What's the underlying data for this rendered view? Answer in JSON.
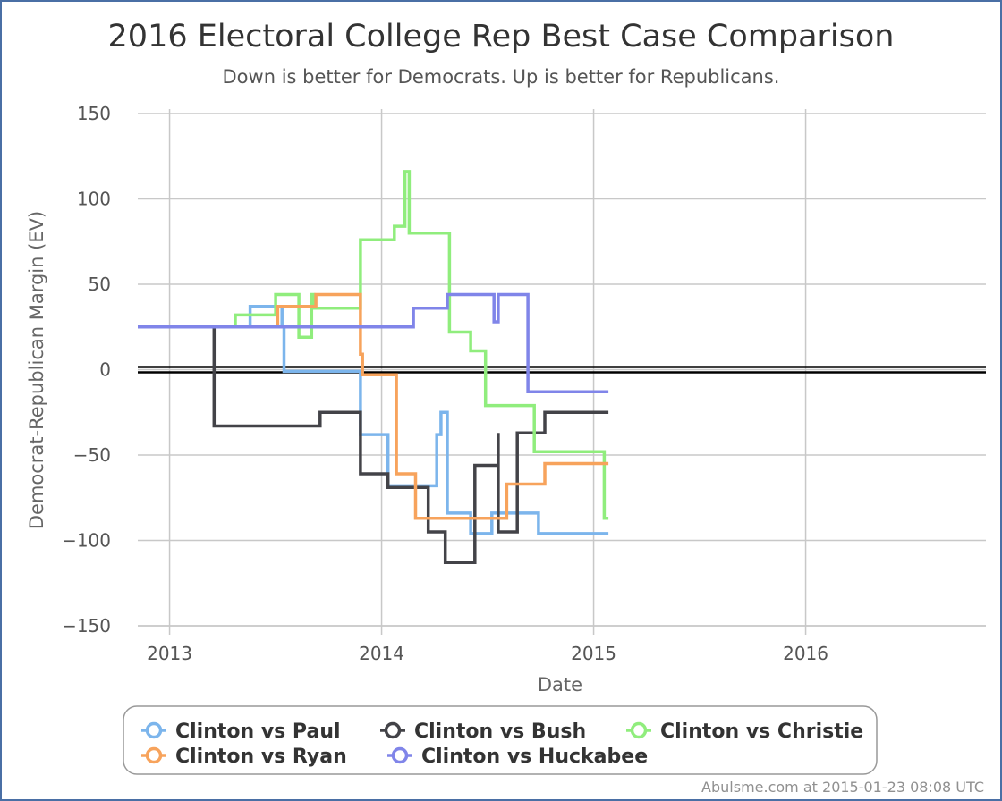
{
  "chart_data": {
    "type": "line",
    "title": "2016 Electoral College Rep Best Case Comparison",
    "subtitle": "Down is better for Democrats. Up is better for Republicans.",
    "xlabel": "Date",
    "ylabel": "Democrat-Republican Margin (EV)",
    "xlim": [
      2012.85,
      2016.85
    ],
    "ylim": [
      -150,
      150
    ],
    "x_ticks": [
      {
        "value": 2013,
        "label": "2013"
      },
      {
        "value": 2014,
        "label": "2014"
      },
      {
        "value": 2015,
        "label": "2015"
      },
      {
        "value": 2016,
        "label": "2016"
      }
    ],
    "y_ticks": [
      {
        "value": 150,
        "label": "150"
      },
      {
        "value": 100,
        "label": "100"
      },
      {
        "value": 50,
        "label": "50"
      },
      {
        "value": 0,
        "label": "0"
      },
      {
        "value": -50,
        "label": "−50"
      },
      {
        "value": -100,
        "label": "−100"
      },
      {
        "value": -150,
        "label": "−150"
      }
    ],
    "grid": true,
    "step": true,
    "legend_position": "bottom",
    "series": [
      {
        "name": "Clinton vs Paul",
        "color": "#7cb5ec",
        "points": [
          [
            2012.85,
            25
          ],
          [
            2013.38,
            25
          ],
          [
            2013.38,
            37
          ],
          [
            2013.53,
            37
          ],
          [
            2013.53,
            25
          ],
          [
            2013.54,
            25
          ],
          [
            2013.54,
            -1
          ],
          [
            2013.9,
            -1
          ],
          [
            2013.9,
            -38
          ],
          [
            2014.03,
            -38
          ],
          [
            2014.03,
            -68
          ],
          [
            2014.26,
            -68
          ],
          [
            2014.26,
            -38
          ],
          [
            2014.28,
            -38
          ],
          [
            2014.28,
            -25
          ],
          [
            2014.31,
            -25
          ],
          [
            2014.31,
            -84
          ],
          [
            2014.42,
            -84
          ],
          [
            2014.42,
            -96
          ],
          [
            2014.52,
            -96
          ],
          [
            2014.52,
            -84
          ],
          [
            2014.74,
            -84
          ],
          [
            2014.74,
            -96
          ],
          [
            2015.07,
            -96
          ]
        ]
      },
      {
        "name": "Clinton vs Bush",
        "color": "#434348",
        "points": [
          [
            2012.85,
            25
          ],
          [
            2013.21,
            25
          ],
          [
            2013.21,
            -33
          ],
          [
            2013.71,
            -33
          ],
          [
            2013.71,
            -25
          ],
          [
            2013.9,
            -25
          ],
          [
            2013.9,
            -61
          ],
          [
            2014.03,
            -61
          ],
          [
            2014.03,
            -69
          ],
          [
            2014.22,
            -69
          ],
          [
            2014.22,
            -95
          ],
          [
            2014.3,
            -95
          ],
          [
            2014.3,
            -113
          ],
          [
            2014.44,
            -113
          ],
          [
            2014.44,
            -56
          ],
          [
            2014.55,
            -56
          ],
          [
            2014.55,
            -37
          ],
          [
            2014.55,
            -37
          ],
          [
            2014.55,
            -95
          ],
          [
            2014.64,
            -95
          ],
          [
            2014.64,
            -37
          ],
          [
            2014.77,
            -37
          ],
          [
            2014.77,
            -25
          ],
          [
            2015.07,
            -25
          ]
        ]
      },
      {
        "name": "Clinton vs Christie",
        "color": "#90ed7d",
        "points": [
          [
            2012.85,
            25
          ],
          [
            2013.31,
            25
          ],
          [
            2013.31,
            32
          ],
          [
            2013.5,
            32
          ],
          [
            2013.5,
            44
          ],
          [
            2013.61,
            44
          ],
          [
            2013.61,
            19
          ],
          [
            2013.67,
            19
          ],
          [
            2013.67,
            44
          ],
          [
            2013.68,
            44
          ],
          [
            2013.68,
            36
          ],
          [
            2013.9,
            36
          ],
          [
            2013.9,
            76
          ],
          [
            2014.06,
            76
          ],
          [
            2014.06,
            84
          ],
          [
            2014.11,
            84
          ],
          [
            2014.11,
            116
          ],
          [
            2014.13,
            116
          ],
          [
            2014.13,
            80
          ],
          [
            2014.32,
            80
          ],
          [
            2014.32,
            22
          ],
          [
            2014.42,
            22
          ],
          [
            2014.42,
            11
          ],
          [
            2014.49,
            11
          ],
          [
            2014.49,
            -21
          ],
          [
            2014.72,
            -21
          ],
          [
            2014.72,
            -48
          ],
          [
            2015.05,
            -48
          ],
          [
            2015.05,
            -87
          ],
          [
            2015.07,
            -87
          ]
        ]
      },
      {
        "name": "Clinton vs Ryan",
        "color": "#f7a35c",
        "points": [
          [
            2012.85,
            25
          ],
          [
            2013.51,
            25
          ],
          [
            2013.51,
            37
          ],
          [
            2013.69,
            37
          ],
          [
            2013.69,
            44
          ],
          [
            2013.9,
            44
          ],
          [
            2013.9,
            9
          ],
          [
            2013.91,
            9
          ],
          [
            2013.91,
            -3
          ],
          [
            2014.07,
            -3
          ],
          [
            2014.07,
            -61
          ],
          [
            2014.16,
            -61
          ],
          [
            2014.16,
            -87
          ],
          [
            2014.59,
            -87
          ],
          [
            2014.59,
            -67
          ],
          [
            2014.77,
            -67
          ],
          [
            2014.77,
            -55
          ],
          [
            2015.07,
            -55
          ]
        ]
      },
      {
        "name": "Clinton vs Huckabee",
        "color": "#8085e9",
        "points": [
          [
            2012.85,
            25
          ],
          [
            2014.15,
            25
          ],
          [
            2014.15,
            36
          ],
          [
            2014.31,
            36
          ],
          [
            2014.31,
            44
          ],
          [
            2014.53,
            44
          ],
          [
            2014.53,
            28
          ],
          [
            2014.55,
            28
          ],
          [
            2014.55,
            44
          ],
          [
            2014.69,
            44
          ],
          [
            2014.69,
            -13
          ],
          [
            2015.07,
            -13
          ]
        ]
      }
    ]
  },
  "credit": "Abulsme.com at 2015-01-23 08:08 UTC"
}
